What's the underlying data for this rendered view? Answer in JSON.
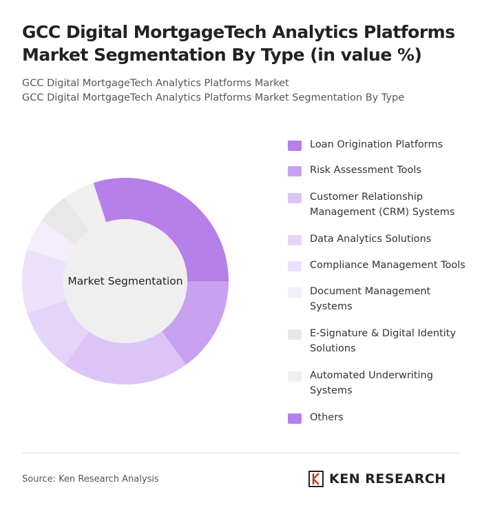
{
  "chart_data": {
    "type": "pie",
    "title": "GCC Digital MortgageTech Analytics Platforms Market Segmentation By Type (in value %)",
    "subtitle": [
      "GCC Digital MortgageTech Analytics Platforms Market",
      "GCC Digital MortgageTech Analytics Platforms Market Segmentation By Type"
    ],
    "center_label": "Market Segmentation",
    "categories": [
      "Loan Origination Platforms",
      "Risk Assessment Tools",
      "Customer Relationship Management (CRM) Systems",
      "Data Analytics Solutions",
      "Compliance Management Tools",
      "Document Management Systems",
      "E-Signature & Digital Identity Solutions",
      "Automated Underwriting Systems",
      "Others"
    ],
    "values": [
      25,
      15,
      20,
      10,
      10,
      5,
      5,
      5,
      5
    ],
    "colors": [
      "#b67fe9",
      "#c8a0f0",
      "#dcc4f7",
      "#e5d4f8",
      "#ece1fa",
      "#f3edfc",
      "#e8e8e8",
      "#f0f0f0",
      "#b67fe9"
    ]
  },
  "source": "Source: Ken Research Analysis",
  "logo": "KEN RESEARCH"
}
